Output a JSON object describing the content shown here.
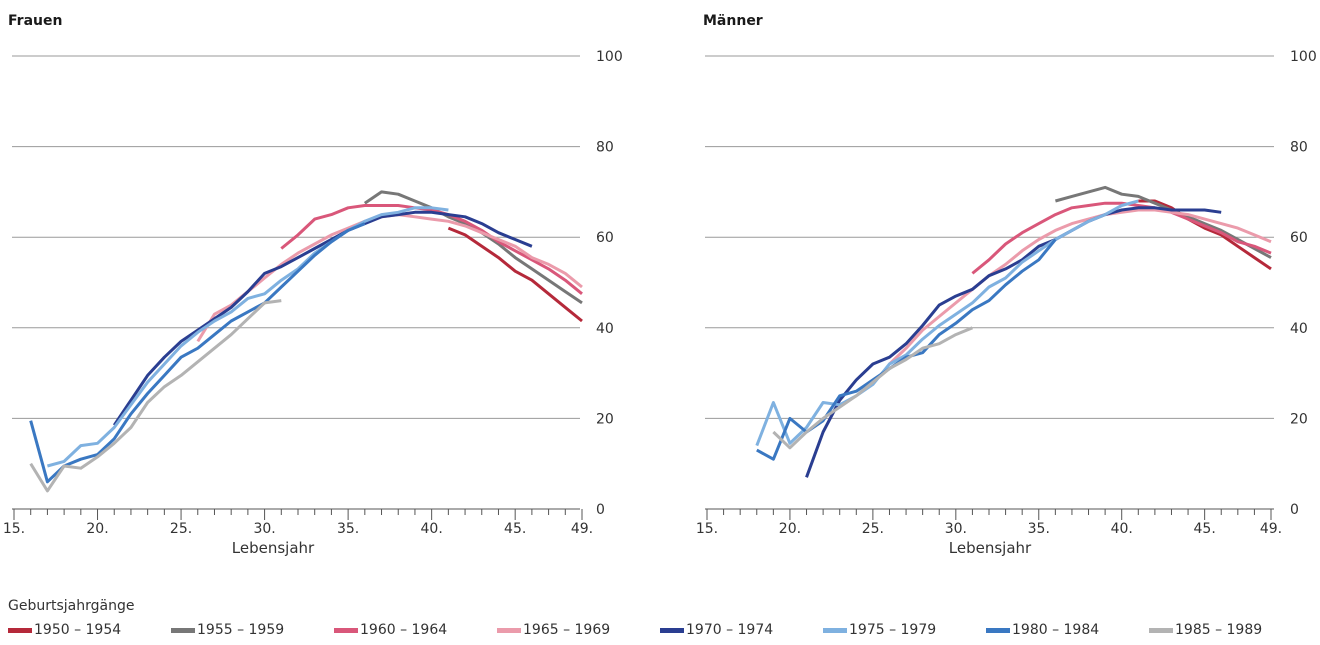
{
  "legend_title": "Geburtsjahrgänge",
  "chart_data": [
    {
      "type": "line",
      "title": "Frauen",
      "xlabel": "Lebensjahr",
      "ylabel": "",
      "xlim": [
        15,
        49
      ],
      "ylim": [
        0,
        100
      ],
      "xticks": [
        15,
        20,
        25,
        30,
        35,
        40,
        45,
        49
      ],
      "xtick_labels": [
        "15.",
        "20.",
        "25.",
        "30.",
        "35.",
        "40.",
        "45.",
        "49."
      ],
      "yticks": [
        0,
        20,
        40,
        60,
        80,
        100
      ],
      "legend": "bottom",
      "series": [
        {
          "name": "1950 – 1954",
          "color": "#b5293a",
          "x": [
            41,
            42,
            43,
            44,
            45,
            46,
            47,
            48,
            49
          ],
          "y": [
            62,
            60.5,
            58,
            55.5,
            52.5,
            50.5,
            47.5,
            44.5,
            41.5
          ]
        },
        {
          "name": "1955 – 1959",
          "color": "#777777",
          "x": [
            36,
            37,
            38,
            39,
            40,
            41,
            42,
            43,
            44,
            45,
            46,
            47,
            48,
            49
          ],
          "y": [
            67.5,
            70,
            69.5,
            68,
            66.5,
            64.5,
            63,
            61,
            58.5,
            55.5,
            53,
            50.5,
            48,
            45.5
          ]
        },
        {
          "name": "1960 – 1964",
          "color": "#d9577a",
          "x": [
            31,
            32,
            33,
            34,
            35,
            36,
            37,
            38,
            39,
            40,
            41,
            42,
            43,
            44,
            45,
            46,
            47,
            48,
            49
          ],
          "y": [
            57.5,
            60.5,
            64,
            65,
            66.5,
            67,
            67,
            67,
            66.5,
            66,
            65,
            63.5,
            61.5,
            59,
            57,
            55,
            53,
            50.5,
            47.5
          ]
        },
        {
          "name": "1965 – 1969",
          "color": "#eb9bab",
          "x": [
            26,
            27,
            28,
            29,
            30,
            31,
            32,
            33,
            34,
            35,
            36,
            37,
            38,
            39,
            40,
            41,
            42,
            43,
            44,
            45,
            46,
            47,
            48,
            49
          ],
          "y": [
            37,
            43,
            45,
            48,
            51,
            54,
            56.5,
            58.5,
            60.5,
            62,
            63.5,
            64.5,
            65,
            64.5,
            64,
            63.5,
            62.5,
            61,
            59.5,
            58,
            55.5,
            54,
            52,
            49
          ]
        },
        {
          "name": "1970 – 1974",
          "color": "#2a3e91",
          "x": [
            21,
            22,
            23,
            24,
            25,
            26,
            27,
            28,
            29,
            30,
            31,
            32,
            33,
            34,
            35,
            36,
            37,
            38,
            39,
            40,
            41,
            42,
            43,
            44,
            45,
            46
          ],
          "y": [
            18.5,
            24,
            29.5,
            33.5,
            37,
            39.5,
            42,
            44.5,
            48,
            52,
            53.5,
            55.5,
            57.5,
            59.5,
            61.5,
            63,
            64.5,
            65,
            65.5,
            65.5,
            65,
            64.5,
            63,
            61,
            59.5,
            58
          ]
        },
        {
          "name": "1975 – 1979",
          "color": "#7fb1e0",
          "x": [
            17,
            18,
            19,
            20,
            21,
            22,
            23,
            24,
            25,
            26,
            27,
            28,
            29,
            30,
            31,
            32,
            33,
            34,
            35,
            36,
            37,
            38,
            39,
            40,
            41
          ],
          "y": [
            9.5,
            10.5,
            14,
            14.5,
            18,
            23,
            28,
            32,
            36,
            39,
            41.5,
            43.5,
            46.5,
            47.5,
            50.5,
            53,
            56.5,
            59,
            61.5,
            63.5,
            65,
            65.5,
            66.5,
            66.5,
            66
          ]
        },
        {
          "name": "1980 – 1984",
          "color": "#3a78c2",
          "x": [
            16,
            17,
            18,
            19,
            20,
            21,
            22,
            23,
            24,
            25,
            26,
            27,
            28,
            29,
            30,
            31,
            32,
            33,
            34,
            35,
            36
          ],
          "y": [
            19.5,
            6,
            9.5,
            11,
            12,
            15.5,
            21,
            25.5,
            29.5,
            33.5,
            35.5,
            38.5,
            41.5,
            43.5,
            45.5,
            49,
            52.5,
            56,
            59,
            61.5,
            63
          ]
        },
        {
          "name": "1985 – 1989",
          "color": "#b3b3b3",
          "x": [
            16,
            17,
            18,
            19,
            20,
            21,
            22,
            23,
            24,
            25,
            26,
            27,
            28,
            29,
            30,
            31
          ],
          "y": [
            10,
            4,
            9.5,
            9,
            11.5,
            14.5,
            18,
            23.5,
            27,
            29.5,
            32.5,
            35.5,
            38.5,
            42,
            45.5,
            46
          ]
        }
      ]
    },
    {
      "type": "line",
      "title": "Männer",
      "xlabel": "Lebensjahr",
      "ylabel": "",
      "xlim": [
        15,
        49
      ],
      "ylim": [
        0,
        100
      ],
      "xticks": [
        15,
        20,
        25,
        30,
        35,
        40,
        45,
        49
      ],
      "xtick_labels": [
        "15.",
        "20.",
        "25.",
        "30.",
        "35.",
        "40.",
        "45.",
        "49."
      ],
      "yticks": [
        0,
        20,
        40,
        60,
        80,
        100
      ],
      "legend": "bottom",
      "series": [
        {
          "name": "1950 – 1954",
          "color": "#b5293a",
          "x": [
            41,
            42,
            43,
            44,
            45,
            46,
            47,
            48,
            49
          ],
          "y": [
            68,
            68,
            66.5,
            64,
            62,
            60.5,
            58,
            55.5,
            53
          ]
        },
        {
          "name": "1955 – 1959",
          "color": "#777777",
          "x": [
            36,
            37,
            38,
            39,
            40,
            41,
            42,
            43,
            44,
            45,
            46,
            47,
            48,
            49
          ],
          "y": [
            68,
            69,
            70,
            71,
            69.5,
            69,
            67.5,
            66,
            64.5,
            63,
            61.5,
            59.5,
            57.5,
            55.5
          ]
        },
        {
          "name": "1960 – 1964",
          "color": "#d9577a",
          "x": [
            31,
            32,
            33,
            34,
            35,
            36,
            37,
            38,
            39,
            40,
            41,
            42,
            43,
            44,
            45,
            46,
            47,
            48,
            49
          ],
          "y": [
            52,
            55,
            58.5,
            61,
            63,
            65,
            66.5,
            67,
            67.5,
            67.5,
            67,
            66.5,
            65.5,
            64,
            62.5,
            61,
            59,
            58,
            56.5
          ]
        },
        {
          "name": "1965 – 1969",
          "color": "#eb9bab",
          "x": [
            26,
            27,
            28,
            29,
            30,
            31,
            32,
            33,
            34,
            35,
            36,
            37,
            38,
            39,
            40,
            41,
            42,
            43,
            44,
            45,
            46,
            47,
            48,
            49
          ],
          "y": [
            32,
            35.5,
            39.5,
            42.5,
            45.5,
            48.5,
            51.5,
            54,
            57,
            59.5,
            61.5,
            63,
            64,
            65,
            65.5,
            66,
            66,
            65.5,
            65,
            64,
            63,
            62,
            60.5,
            59
          ]
        },
        {
          "name": "1970 – 1974",
          "color": "#2a3e91",
          "x": [
            21,
            22,
            23,
            24,
            25,
            26,
            27,
            28,
            29,
            30,
            31,
            32,
            33,
            34,
            35,
            36,
            37,
            38,
            39,
            40,
            41,
            42,
            43,
            44,
            45,
            46
          ],
          "y": [
            7,
            17,
            24,
            28.5,
            32,
            33.5,
            36.5,
            40.5,
            45,
            47,
            48.5,
            51.5,
            53,
            55,
            58,
            59.5,
            61.5,
            63.5,
            65,
            66,
            66.5,
            66.5,
            66,
            66,
            66,
            65.5
          ]
        },
        {
          "name": "1975 – 1979",
          "color": "#7fb1e0",
          "x": [
            18,
            19,
            20,
            21,
            22,
            23,
            24,
            25,
            26,
            27,
            28,
            29,
            30,
            31,
            32,
            33,
            34,
            35,
            36,
            37,
            38,
            39,
            40,
            41
          ],
          "y": [
            14,
            23.5,
            14.5,
            18,
            23.5,
            23,
            25,
            27.5,
            32,
            34,
            37.5,
            40.5,
            43,
            45.5,
            49,
            51,
            54.5,
            57,
            59.5,
            61.5,
            63.5,
            65,
            67,
            68
          ]
        },
        {
          "name": "1980 – 1984",
          "color": "#3a78c2",
          "x": [
            18,
            19,
            20,
            21,
            22,
            23,
            24,
            25,
            26,
            27,
            28,
            29,
            30,
            31,
            32,
            33,
            34,
            35,
            36
          ],
          "y": [
            13,
            11,
            20,
            17,
            19.5,
            25,
            26,
            28.5,
            31,
            33.5,
            34.5,
            38.5,
            41,
            44,
            46,
            49.5,
            52.5,
            55,
            59.5
          ]
        },
        {
          "name": "1985 – 1989",
          "color": "#b3b3b3",
          "x": [
            19,
            20,
            21,
            22,
            23,
            24,
            25,
            26,
            27,
            28,
            29,
            30,
            31
          ],
          "y": [
            17,
            13.5,
            17,
            20,
            22.5,
            25,
            28,
            31,
            33,
            35.5,
            36.5,
            38.5,
            40
          ]
        }
      ]
    }
  ]
}
